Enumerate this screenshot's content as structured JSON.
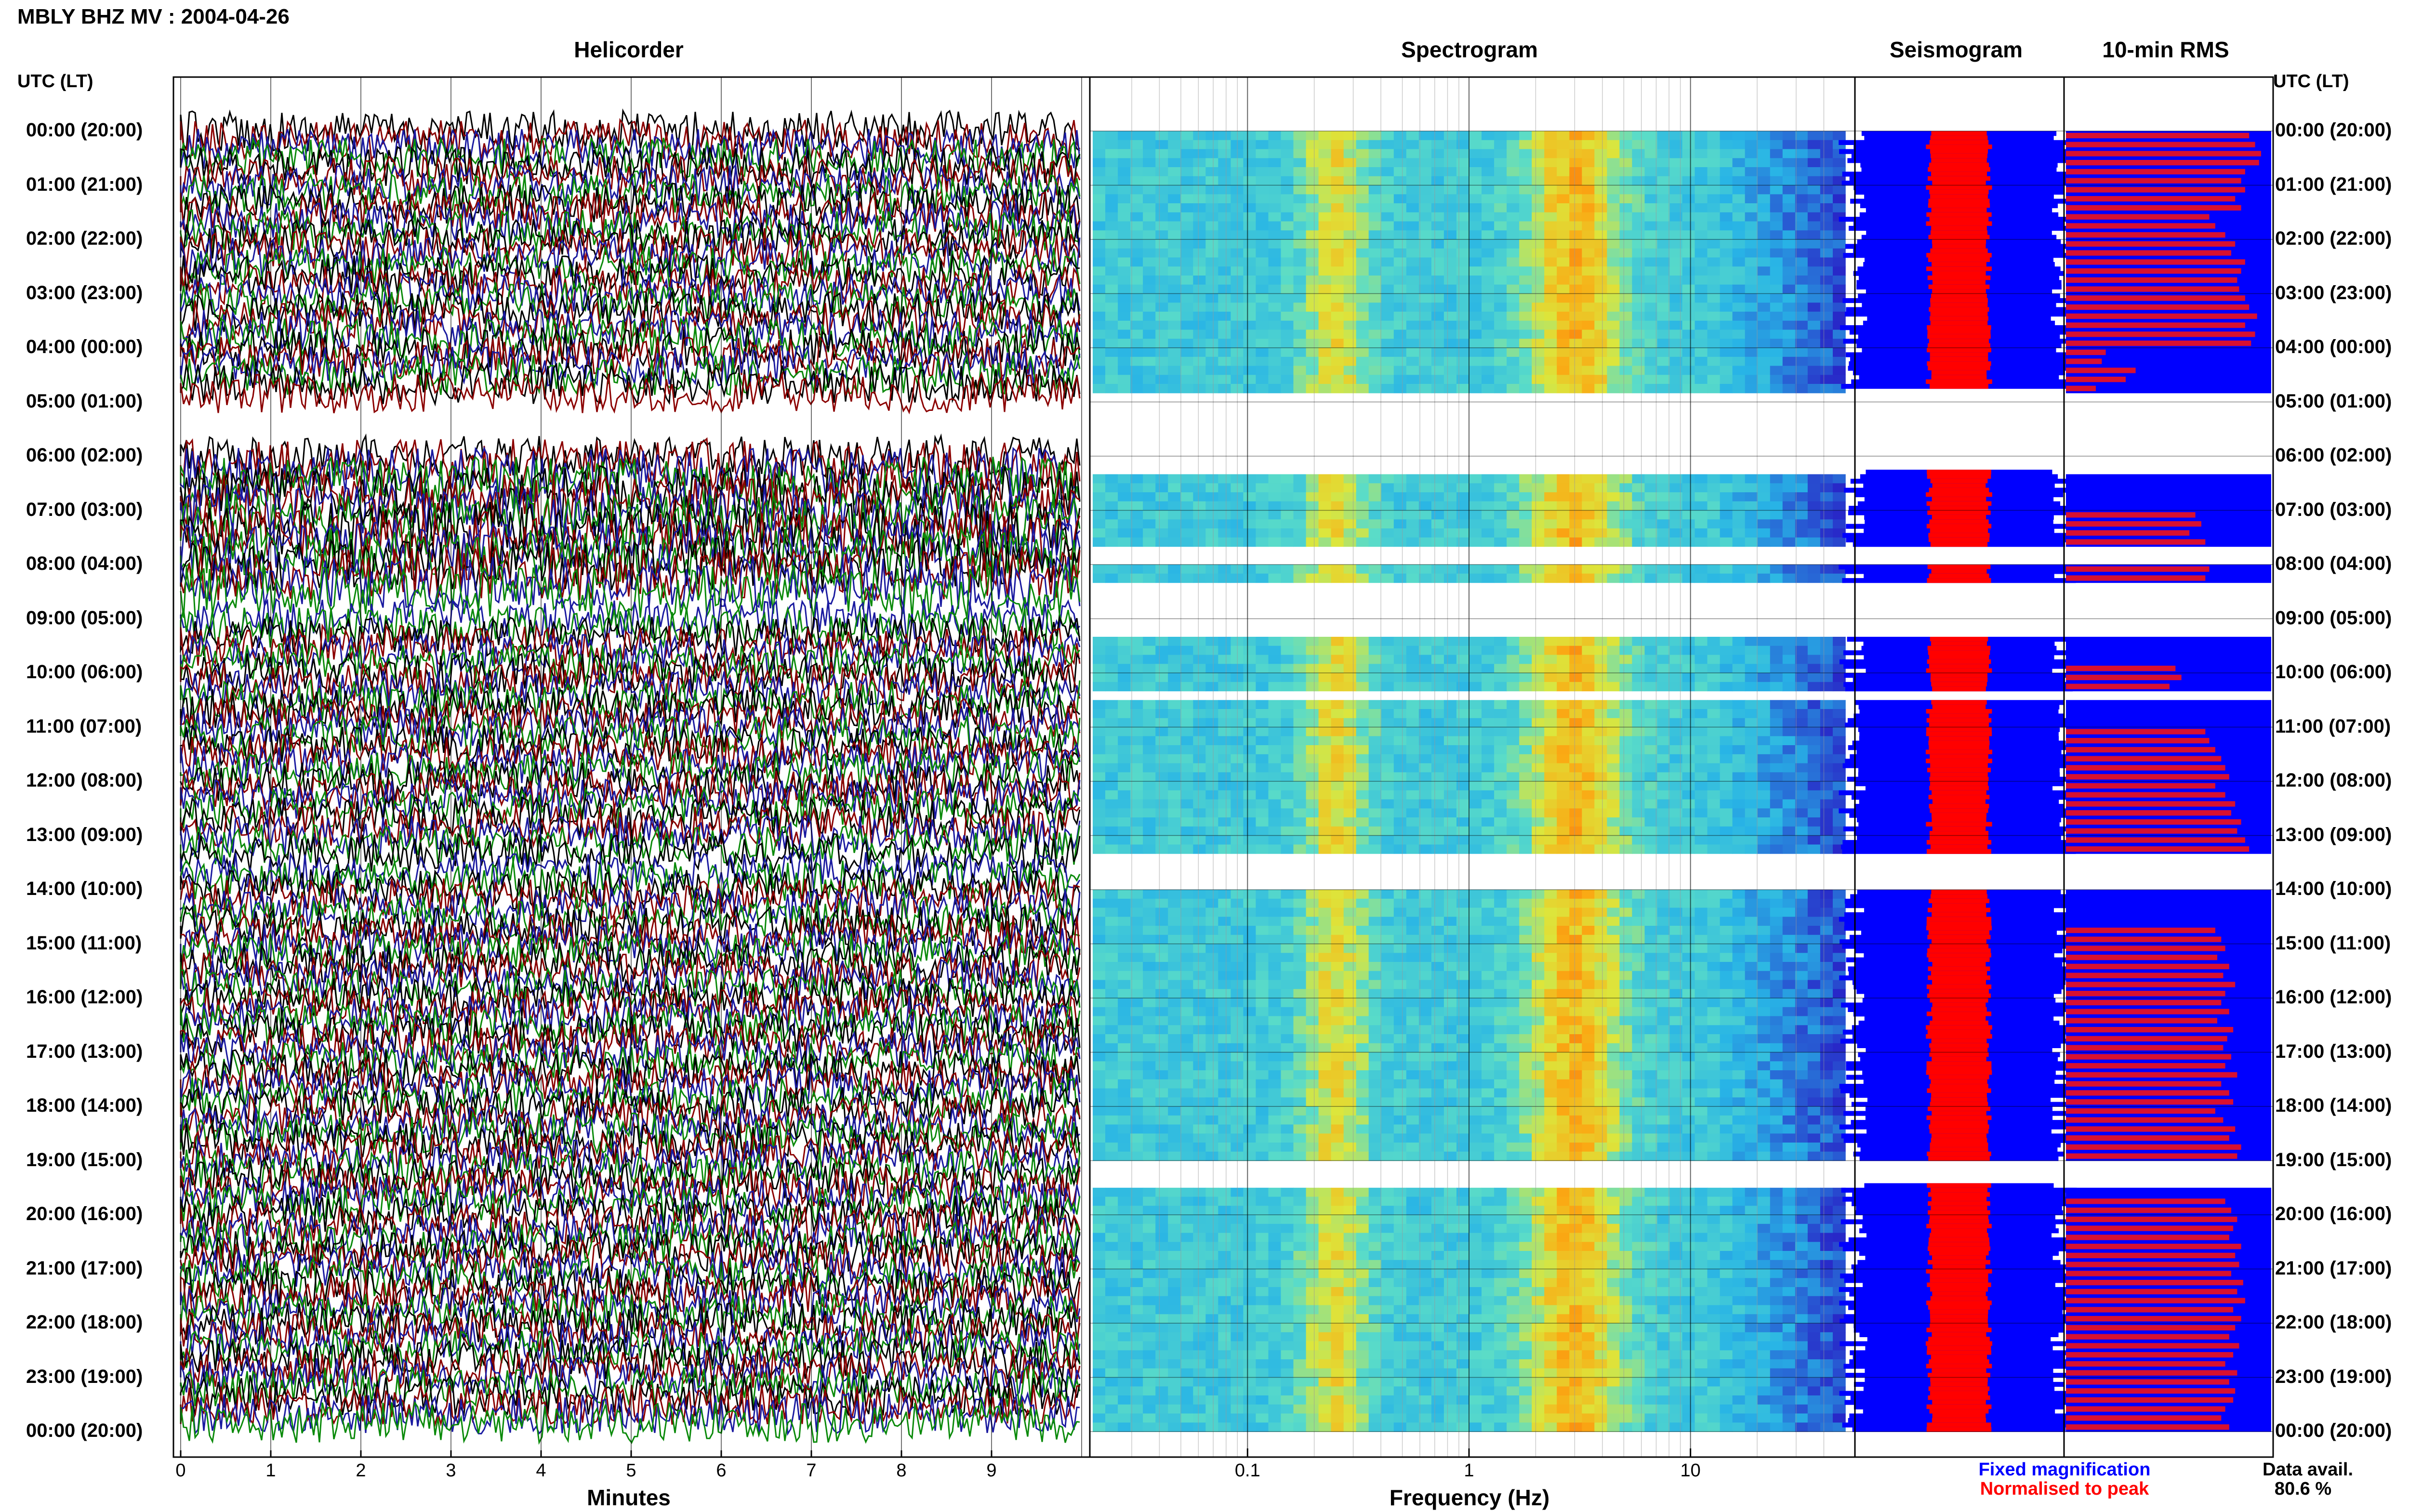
{
  "title": "MBLY BHZ MV : 2004-04-26",
  "panels": {
    "helicorder": "Helicorder",
    "spectrogram": "Spectrogram",
    "seismogram": "Seismogram",
    "rms": "10-min RMS"
  },
  "utc_header": "UTC (LT)",
  "hour_labels": [
    "00:00 (20:00)",
    "01:00 (21:00)",
    "02:00 (22:00)",
    "03:00 (23:00)",
    "04:00 (00:00)",
    "05:00 (01:00)",
    "06:00 (02:00)",
    "07:00 (03:00)",
    "08:00 (04:00)",
    "09:00 (05:00)",
    "10:00 (06:00)",
    "11:00 (07:00)",
    "12:00 (08:00)",
    "13:00 (09:00)",
    "14:00 (10:00)",
    "15:00 (11:00)",
    "16:00 (12:00)",
    "17:00 (13:00)",
    "18:00 (14:00)",
    "19:00 (15:00)",
    "20:00 (16:00)",
    "21:00 (17:00)",
    "22:00 (18:00)",
    "23:00 (19:00)",
    "00:00 (20:00)"
  ],
  "xaxis_minutes": {
    "label": "Minutes",
    "ticks": [
      "0",
      "1",
      "2",
      "3",
      "4",
      "5",
      "6",
      "7",
      "8",
      "9"
    ]
  },
  "xaxis_frequency": {
    "label": "Frequency (Hz)",
    "ticks": [
      "0.1",
      "1",
      "10"
    ]
  },
  "legend": {
    "fixed": "Fixed magnification",
    "normalised": "Normalised to peak",
    "data_avail_label": "Data avail.",
    "data_avail_value": "80.6 %"
  },
  "colors": {
    "trace_colors": [
      "#000000",
      "#8b0000",
      "#1a1aa0",
      "#0a8a0a"
    ],
    "fixed": "#0000ff",
    "normalised": "#ff0000",
    "spectro_low": "#2a2ad0",
    "spectro_high": "#ff2a00"
  },
  "chart_data": {
    "type": "heatmap",
    "hours": 24,
    "data_gaps_hours": [
      [
        4.7,
        6.2
      ],
      [
        7.65,
        7.95
      ],
      [
        8.3,
        9.3
      ],
      [
        10.3,
        10.5
      ],
      [
        13.3,
        13.95
      ],
      [
        19.0,
        19.35
      ]
    ],
    "helicorder_gap_hours": [
      [
        4.85,
        6.0
      ],
      [
        8.55,
        8.85
      ],
      [
        13.4,
        13.55
      ]
    ],
    "freq_range_hz": [
      0.02,
      50
    ],
    "spectral_peaks_hz": [
      0.25,
      3.0
    ],
    "rms_10min_relative": [
      0.92,
      0.95,
      0.98,
      0.97,
      0.9,
      0.88,
      0.9,
      0.85,
      0.88,
      0.72,
      0.75,
      0.8,
      0.85,
      0.83,
      0.9,
      0.88,
      0.86,
      0.87,
      0.9,
      0.92,
      0.96,
      0.9,
      0.95,
      0.93,
      0.2,
      0.18,
      0.35,
      0.3,
      0.15,
      0,
      0,
      0,
      0,
      0,
      0,
      0,
      0,
      0,
      0,
      0,
      0,
      0,
      0.65,
      0.68,
      0.62,
      0.7,
      0,
      0.7,
      0.72,
      0.7,
      0,
      0,
      0,
      0,
      0,
      0,
      0,
      0,
      0,
      0.55,
      0.58,
      0.52,
      0.5,
      0,
      0,
      0,
      0.7,
      0.72,
      0.75,
      0.78,
      0.8,
      0.82,
      0.75,
      0.8,
      0.85,
      0.83,
      0.88,
      0.86,
      0.9,
      0.92,
      0.88,
      0.85,
      0,
      0,
      0,
      0,
      0,
      0,
      0.75,
      0.78,
      0.8,
      0.76,
      0.82,
      0.79,
      0.85,
      0.8,
      0.78,
      0.82,
      0.76,
      0.84,
      0.81,
      0.79,
      0.83,
      0.8,
      0.86,
      0.78,
      0.82,
      0.84,
      0.75,
      0.79,
      0.85,
      0.82,
      0.88,
      0.86,
      0.84,
      0.81,
      0,
      0,
      0.8,
      0.83,
      0.86,
      0.84,
      0.82,
      0.88,
      0.85,
      0.87,
      0.83,
      0.89,
      0.86,
      0.9,
      0.84,
      0.88,
      0.85,
      0.82,
      0.87,
      0.84,
      0.8,
      0.86,
      0.82,
      0.85,
      0.84,
      0.8,
      0.78,
      0.82
    ]
  }
}
